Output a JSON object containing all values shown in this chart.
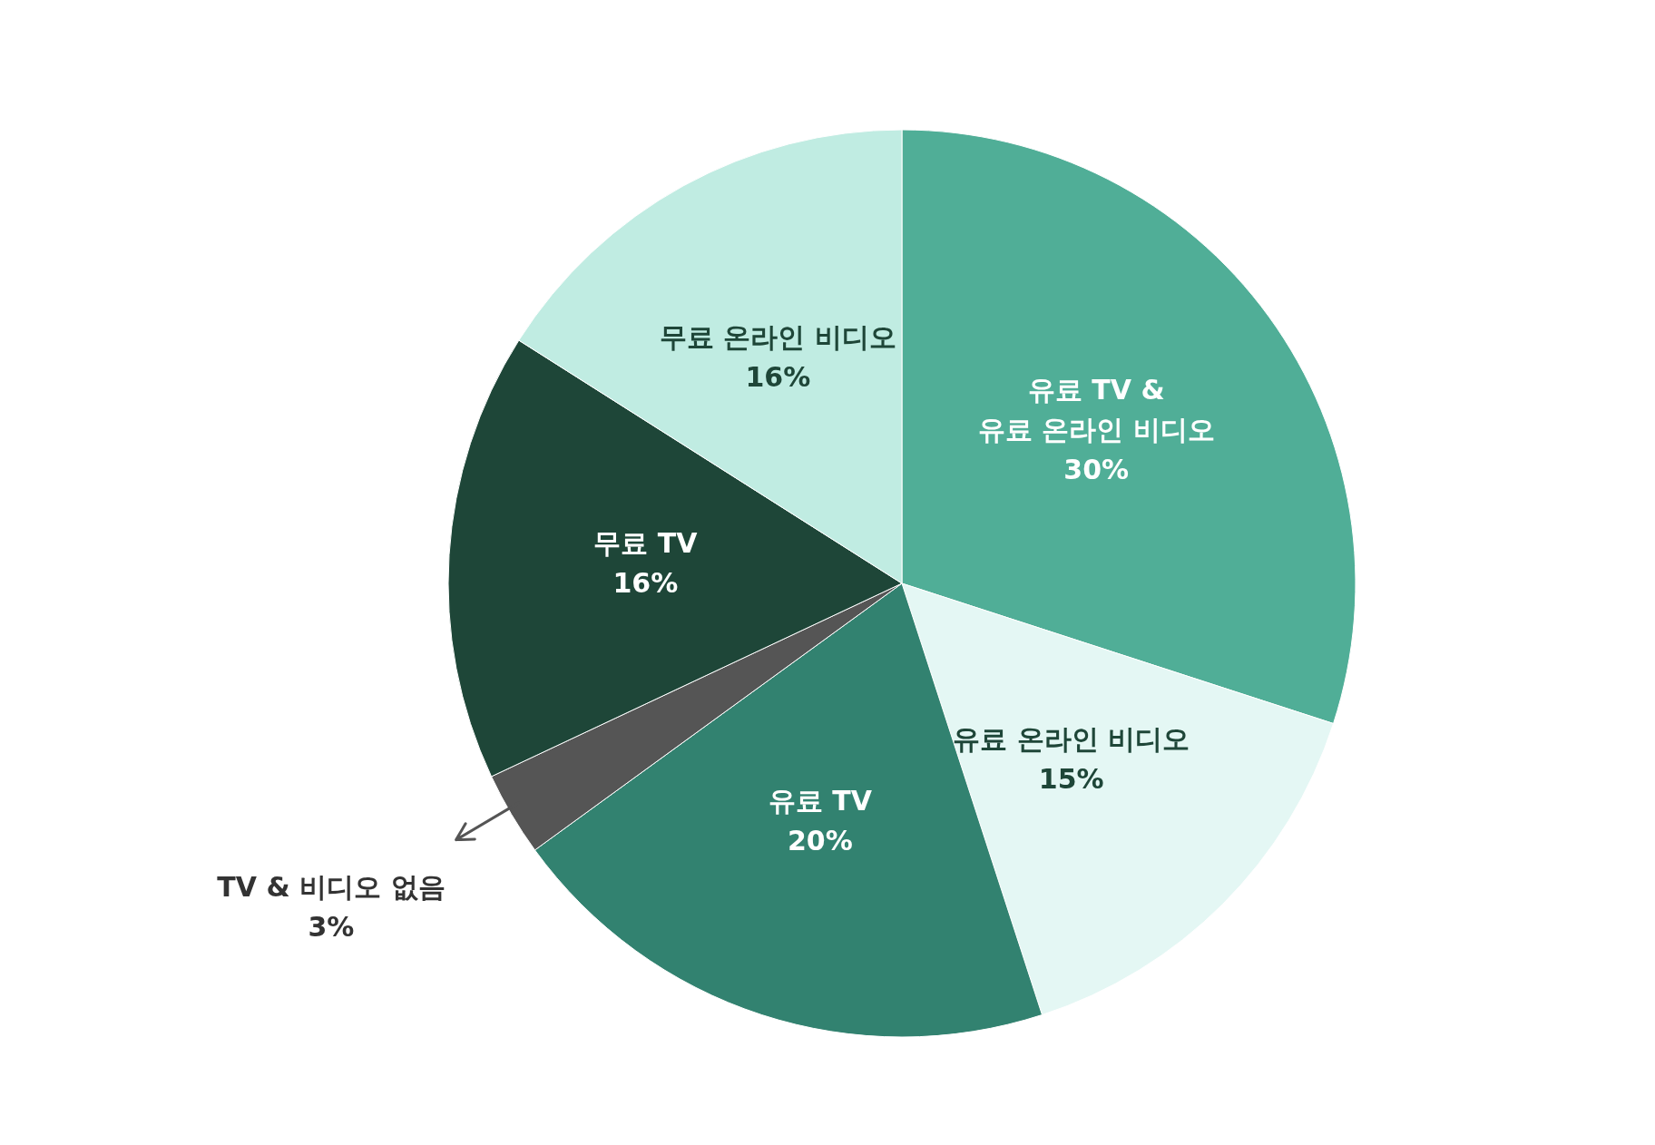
{
  "chart_data": {
    "type": "pie",
    "categories": [
      "유료 TV & 유료 온라인 비디오",
      "유료 온라인 비디오",
      "유료 TV",
      "TV & 비디오 없음",
      "무료 TV",
      "무료 온라인 비디오"
    ],
    "values": [
      30,
      15,
      20,
      3,
      16,
      16
    ],
    "value_labels": [
      "30%",
      "15%",
      "20%",
      "3%",
      "16%",
      "16%"
    ],
    "colors": [
      "#50ae97",
      "#e4f7f4",
      "#328270",
      "#555555",
      "#1e4638",
      "#c0ece2"
    ]
  }
}
